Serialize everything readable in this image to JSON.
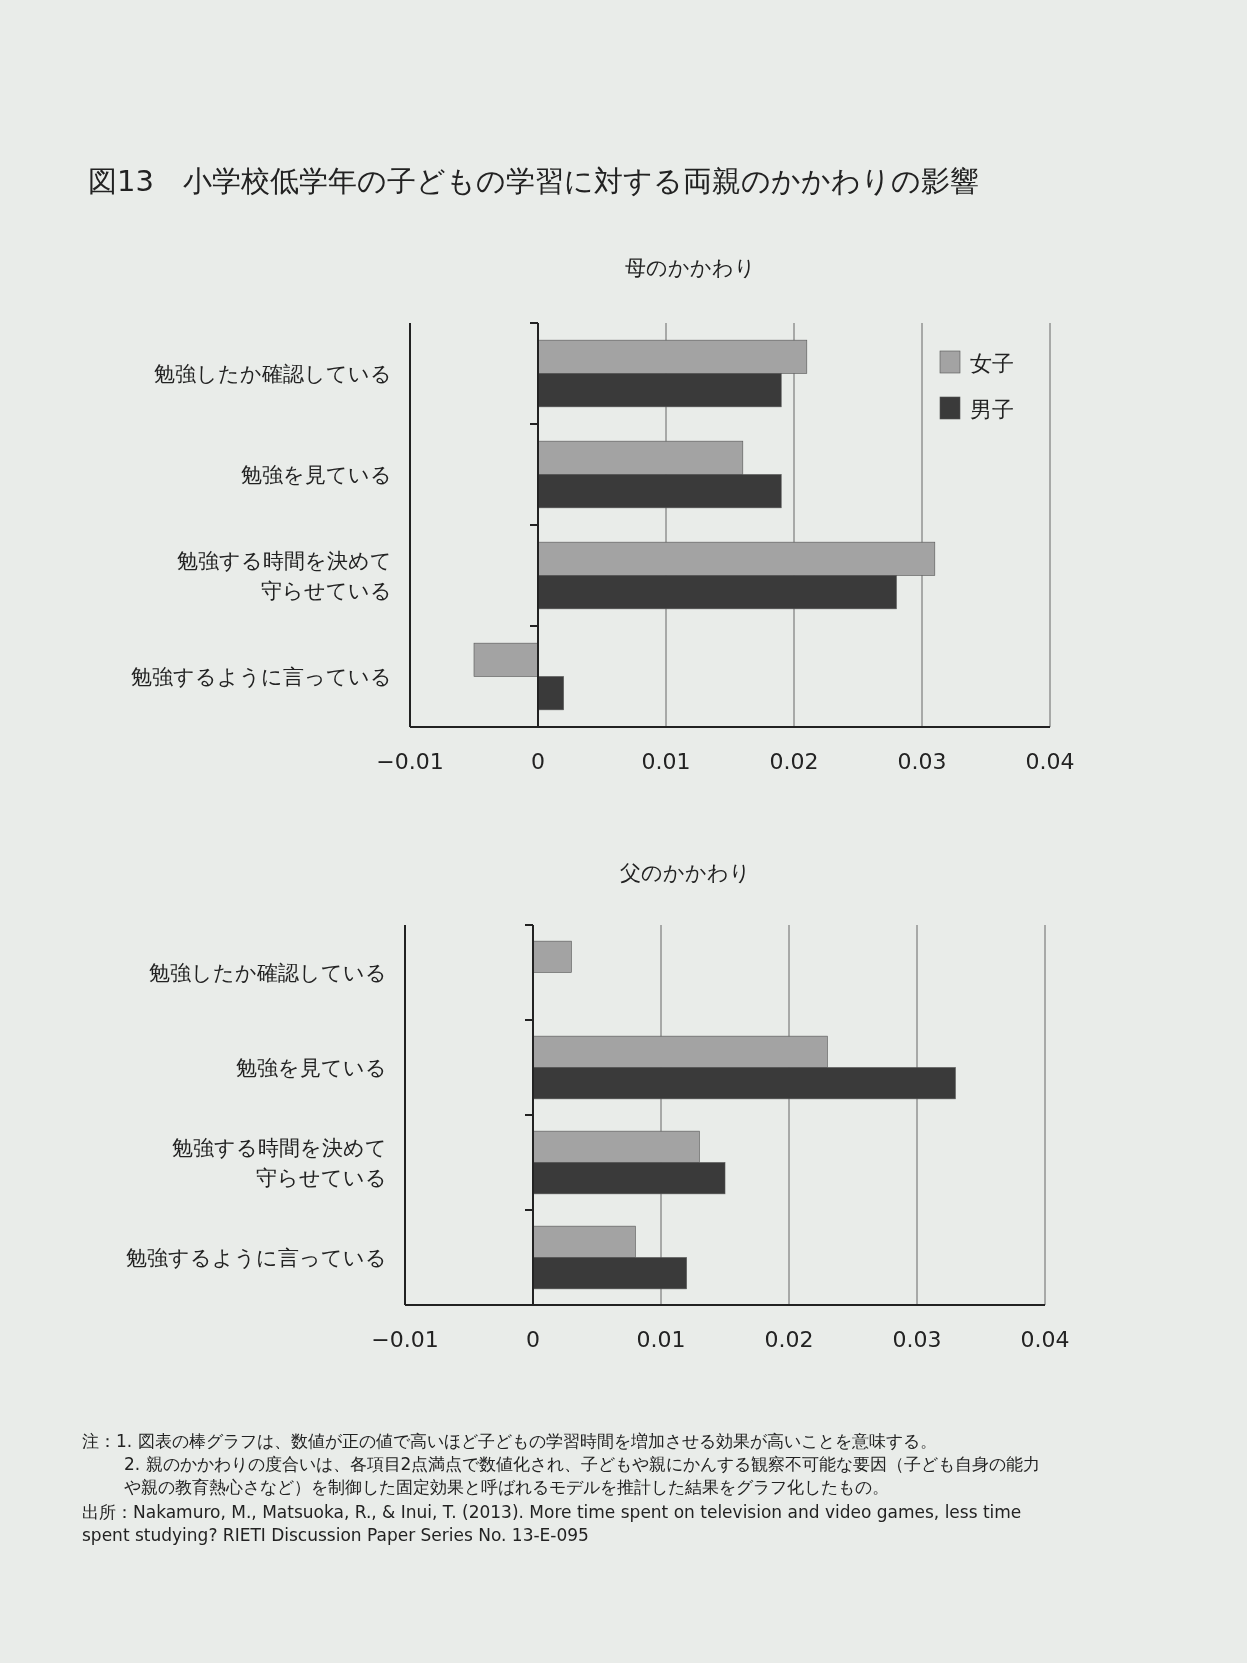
{
  "chart_data": [
    {
      "type": "bar",
      "orientation": "horizontal",
      "title": "図13　小学校低学年の子どもの学習に対する両親のかかわりの影響",
      "subtitle": "母のかかわり",
      "categories": [
        "勉強したか確認している",
        "勉強を見ている",
        "勉強する時間を決めて守らせている",
        "勉強するように言っている"
      ],
      "series": [
        {
          "name": "女子",
          "color": "#a3a3a3",
          "values": [
            0.021,
            0.016,
            0.031,
            -0.005
          ]
        },
        {
          "name": "男子",
          "color": "#3a3a3a",
          "values": [
            0.019,
            0.019,
            0.028,
            0.002
          ]
        }
      ],
      "xlim": [
        -0.01,
        0.04
      ],
      "xticks": [
        -0.01,
        0,
        0.01,
        0.02,
        0.03,
        0.04
      ],
      "grid": "x",
      "legend": "top right"
    },
    {
      "type": "bar",
      "orientation": "horizontal",
      "title": "父のかかわり",
      "categories": [
        "勉強したか確認している",
        "勉強を見ている",
        "勉強する時間を決めて守らせている",
        "勉強するように言っている"
      ],
      "series": [
        {
          "color": "#a3a3a3",
          "values": [
            0.003,
            0.023,
            0.013,
            0.008
          ]
        },
        {
          "color": "#3a3a3a",
          "values": [
            null,
            0.033,
            0.015,
            0.012
          ]
        }
      ],
      "xlim": [
        -0.01,
        0.04
      ],
      "xticks": [
        -0.01,
        0,
        0.01,
        0.02,
        0.03,
        0.04
      ],
      "grid": "x",
      "annotations": [
        "注：1. 図表の棒グラフは、数値が正の値で高いほど子どもの学習時間を増加させる効果が高いことを意味する。",
        "2. 親のかかわりの度合いは、各項目2点満点で数値化され、子どもや親にかんする観察不可能な要因（子ども自身の能力や親の教育熱心さなど）を制御した固定効果と呼ばれるモデルを推計した結果をグラフ化したもの。",
        "出所：Nakamuro, M., Matsuoka, R., & Inui, T. (2013). More time spent on television and video games, less time spent studying? RIETI Discussion Paper Series No. 13-E-095"
      ]
    }
  ]
}
